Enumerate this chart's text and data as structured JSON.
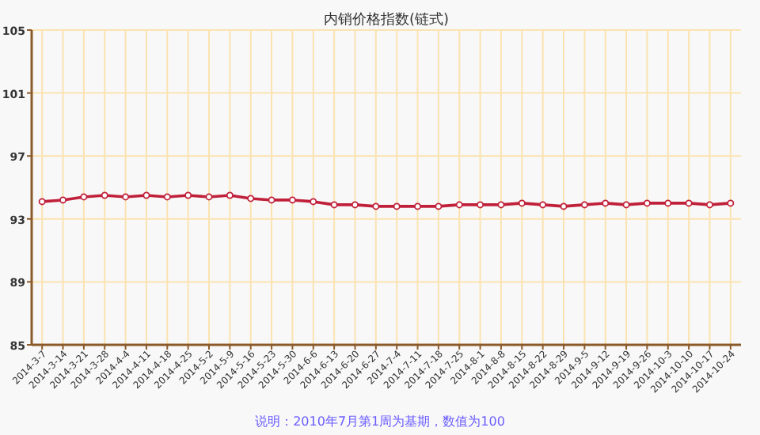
{
  "chart_data": {
    "type": "line",
    "title": "内销价格指数(链式)",
    "annotations": [
      "说明：2010年7月第1周为基期，数值为100"
    ],
    "categories": [
      "2014-3-7",
      "2014-3-14",
      "2014-3-21",
      "2014-3-28",
      "2014-4-4",
      "2014-4-11",
      "2014-4-18",
      "2014-4-25",
      "2014-5-2",
      "2014-5-9",
      "2014-5-16",
      "2014-5-23",
      "2014-5-30",
      "2014-6-6",
      "2014-6-13",
      "2014-6-20",
      "2014-6-27",
      "2014-7-4",
      "2014-7-11",
      "2014-7-18",
      "2014-7-25",
      "2014-8-1",
      "2014-8-8",
      "2014-8-15",
      "2014-8-22",
      "2014-8-29",
      "2014-9-5",
      "2014-9-12",
      "2014-9-19",
      "2014-9-26",
      "2014-10-3",
      "2014-10-10",
      "2014-10-17",
      "2014-10-24"
    ],
    "series": [
      {
        "color": "#c0203a",
        "values": [
          94.1,
          94.2,
          94.4,
          94.5,
          94.4,
          94.5,
          94.4,
          94.5,
          94.4,
          94.5,
          94.3,
          94.2,
          94.2,
          94.1,
          93.9,
          93.9,
          93.8,
          93.8,
          93.8,
          93.8,
          93.9,
          93.9,
          93.9,
          94.0,
          93.9,
          93.8,
          93.9,
          94.0,
          93.9,
          94.0,
          94.0,
          94.0,
          93.9,
          94.0
        ]
      }
    ],
    "ylim": [
      85,
      105
    ],
    "yticks": [
      85,
      89,
      93,
      97,
      101,
      105
    ],
    "grid": true,
    "marker": "circle"
  }
}
